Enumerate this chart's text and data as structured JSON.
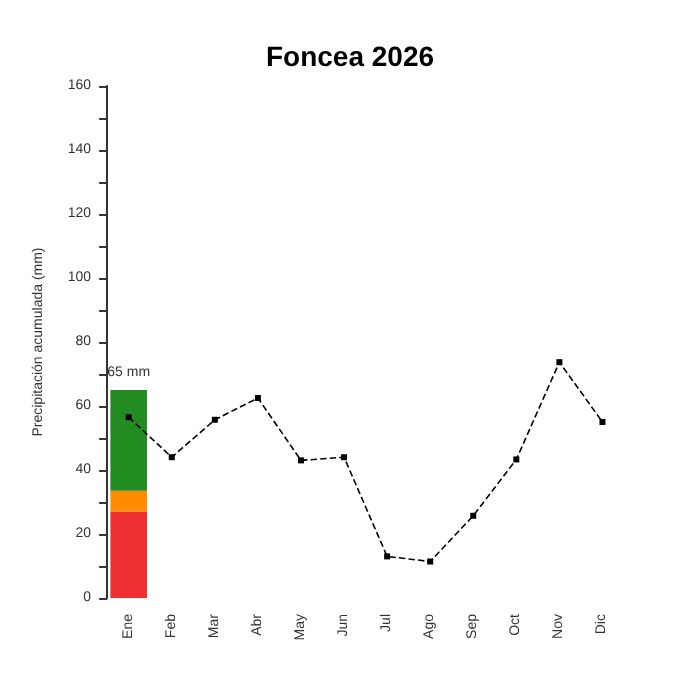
{
  "chart_data": {
    "type": "bar",
    "title": "Foncea 2026",
    "ylabel": "Precipitación acumulada (mm)",
    "categories": [
      "Ene",
      "Feb",
      "Mar",
      "Abr",
      "May",
      "Jun",
      "Jul",
      "Ago",
      "Sep",
      "Oct",
      "Nov",
      "Dic"
    ],
    "stacked": true,
    "series": [
      {
        "color": "#ee3030",
        "values": [
          27,
          null,
          null,
          null,
          null,
          null,
          null,
          null,
          null,
          null,
          null,
          null
        ]
      },
      {
        "color": "#ff8c00",
        "values": [
          6.5,
          null,
          null,
          null,
          null,
          null,
          null,
          null,
          null,
          null,
          null,
          null
        ]
      },
      {
        "color": "#228b22",
        "values": [
          31.5,
          null,
          null,
          null,
          null,
          null,
          null,
          null,
          null,
          null,
          null,
          null
        ]
      },
      {
        "type": "line",
        "color": "#000000",
        "marker": "square",
        "line_style": "dashed",
        "values": [
          56.5,
          44,
          55.7,
          62.5,
          43,
          44,
          13,
          11.4,
          25.7,
          43.3,
          73.7,
          55
        ]
      }
    ],
    "totals": [
      "65 mm",
      null,
      null,
      null,
      null,
      null,
      null,
      null,
      null,
      null,
      null,
      null
    ],
    "ylim": [
      0,
      160
    ],
    "yticks": [
      0,
      {
        "value": 10,
        "label": null
      },
      20,
      {
        "value": 30,
        "label": null
      },
      40,
      {
        "value": 50,
        "label": null
      },
      60,
      {
        "value": 70,
        "label": null
      },
      80,
      {
        "value": 90,
        "label": null
      },
      100,
      {
        "value": 110,
        "label": null
      },
      120,
      {
        "value": 130,
        "label": null
      },
      140,
      {
        "value": 150,
        "label": null
      },
      160
    ],
    "grid": false
  }
}
